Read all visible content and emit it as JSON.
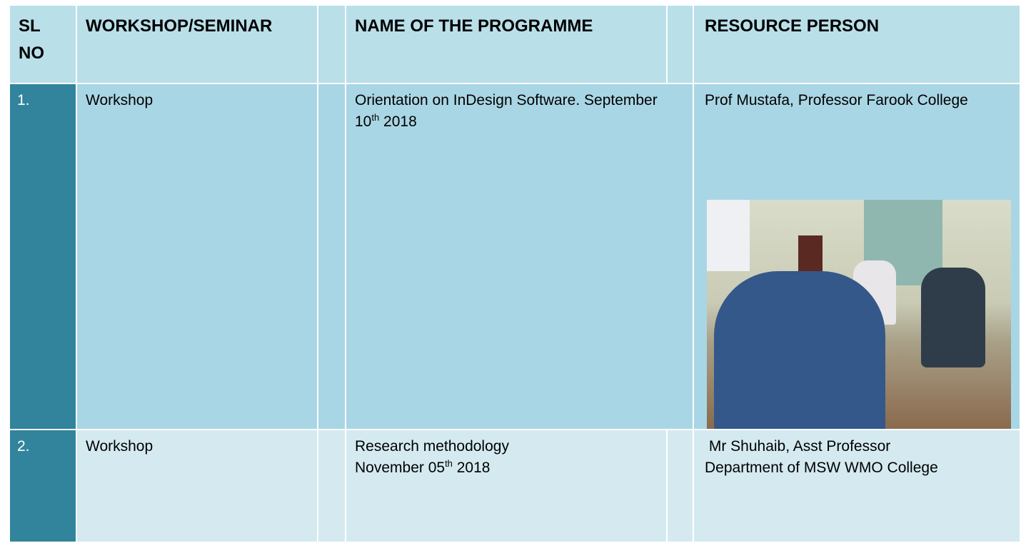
{
  "table": {
    "header": [
      "SL NO",
      "WORKSHOP/SEMINAR",
      "NAME OF THE PROGRAMME",
      "RESOURCE PERSON"
    ],
    "rows": [
      {
        "sl": "1.",
        "type": "Workshop",
        "programme": [
          "Orientation on InDesign Software. September 10",
          "th",
          " 2018"
        ],
        "resource": "Prof Mustafa, Professor Farook College"
      },
      {
        "sl": "2.",
        "type": "Workshop",
        "programme": [
          "Research methodology",
          "November 05",
          "th",
          " 2018"
        ],
        "resource": " Mr Shuhaib, Asst Professor Department of MSW WMO College"
      }
    ]
  }
}
